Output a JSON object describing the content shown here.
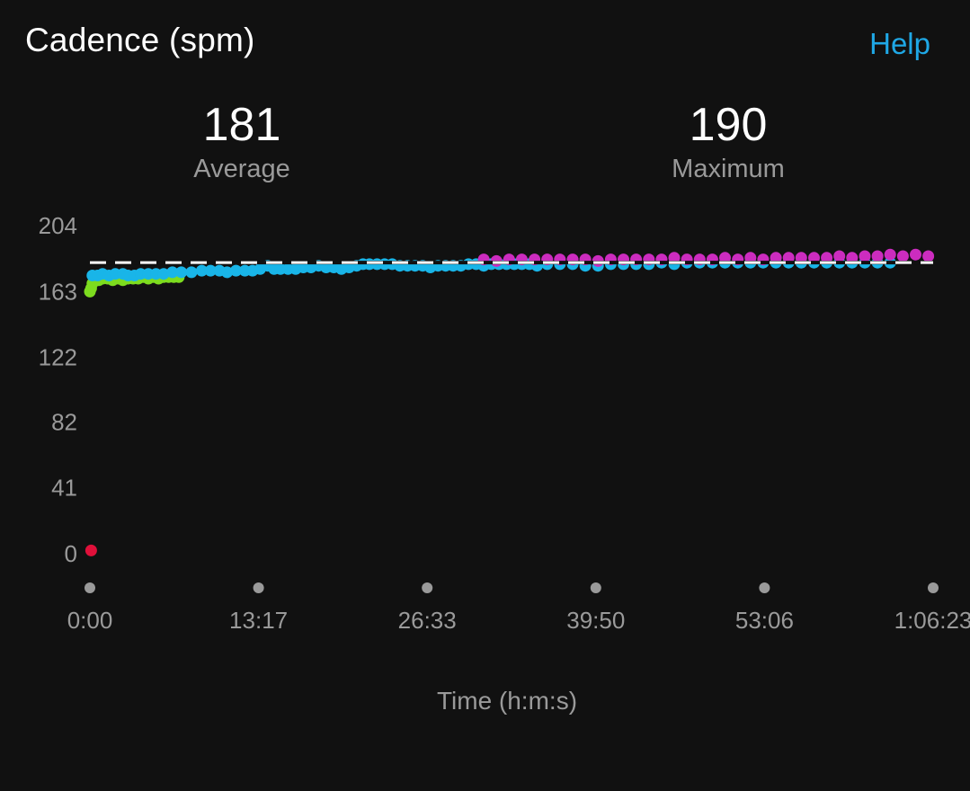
{
  "header": {
    "title": "Cadence (spm)",
    "help_label": "Help"
  },
  "stats": {
    "average": {
      "value": "181",
      "label": "Average"
    },
    "maximum": {
      "value": "190",
      "label": "Maximum"
    }
  },
  "colors": {
    "background": "#111111",
    "accent": "#1fa8e6",
    "zone_green": "#7ddc1f",
    "zone_blue": "#19b5e8",
    "zone_purple": "#cc2cbf",
    "zone_red": "#e0103a",
    "average_line": "#ffffff"
  },
  "chart_data": {
    "type": "scatter",
    "ylabel": "",
    "xlabel": "Time (h:m:s)",
    "y_ticks": [
      "204",
      "163",
      "122",
      "82",
      "41",
      "0"
    ],
    "y_tick_values": [
      204,
      163,
      122,
      82,
      41,
      0
    ],
    "x_ticks": [
      "0:00",
      "13:17",
      "26:33",
      "39:50",
      "53:06",
      "1:06:23"
    ],
    "ylim": [
      0,
      204
    ],
    "xlim_minutes": [
      0,
      66.38
    ],
    "average_line": 181,
    "average_line_style": "dashed",
    "grid": false,
    "series": [
      {
        "color": "#e0103a",
        "points": [
          [
            0.1,
            2
          ]
        ]
      },
      {
        "color": "#7ddc1f",
        "points": [
          [
            0.0,
            163
          ],
          [
            0.1,
            165
          ],
          [
            0.2,
            168
          ],
          [
            0.4,
            170
          ],
          [
            0.7,
            170
          ],
          [
            1.0,
            171
          ],
          [
            1.4,
            171
          ],
          [
            1.8,
            170
          ],
          [
            2.2,
            171
          ],
          [
            2.6,
            170
          ],
          [
            3.0,
            171
          ],
          [
            3.4,
            171
          ],
          [
            3.8,
            171
          ],
          [
            4.2,
            172
          ],
          [
            4.6,
            171
          ],
          [
            5.0,
            172
          ],
          [
            5.4,
            171
          ],
          [
            5.8,
            172
          ],
          [
            6.2,
            172
          ],
          [
            6.6,
            172
          ],
          [
            7.0,
            172
          ]
        ]
      },
      {
        "color": "#19b5e8",
        "points": [
          [
            0.2,
            173
          ],
          [
            0.6,
            173
          ],
          [
            1.0,
            174
          ],
          [
            1.5,
            173
          ],
          [
            2.0,
            174
          ],
          [
            2.6,
            174
          ],
          [
            3.0,
            173
          ],
          [
            3.5,
            173
          ],
          [
            4.0,
            174
          ],
          [
            4.6,
            174
          ],
          [
            5.2,
            174
          ],
          [
            5.8,
            174
          ],
          [
            6.5,
            175
          ],
          [
            7.2,
            175
          ],
          [
            8.0,
            175
          ],
          [
            8.8,
            176
          ],
          [
            9.5,
            176
          ],
          [
            10.2,
            176
          ],
          [
            10.8,
            175
          ],
          [
            11.5,
            176
          ],
          [
            12.2,
            176
          ],
          [
            12.8,
            176
          ],
          [
            13.4,
            177
          ],
          [
            14.0,
            179
          ],
          [
            14.5,
            177
          ],
          [
            15.0,
            177
          ],
          [
            15.6,
            177
          ],
          [
            16.2,
            177
          ],
          [
            16.8,
            178
          ],
          [
            17.4,
            178
          ],
          [
            18.0,
            179
          ],
          [
            18.6,
            178
          ],
          [
            19.2,
            178
          ],
          [
            19.8,
            177
          ],
          [
            20.4,
            178
          ],
          [
            21.0,
            179
          ],
          [
            21.5,
            180
          ],
          [
            22.0,
            180
          ],
          [
            22.6,
            180
          ],
          [
            23.2,
            180
          ],
          [
            23.8,
            180
          ],
          [
            24.4,
            179
          ],
          [
            25.0,
            179
          ],
          [
            25.6,
            179
          ],
          [
            26.2,
            179
          ],
          [
            26.8,
            178
          ],
          [
            27.4,
            179
          ],
          [
            28.0,
            179
          ],
          [
            28.6,
            179
          ],
          [
            29.2,
            179
          ],
          [
            29.8,
            180
          ],
          [
            30.4,
            180
          ],
          [
            31.0,
            179
          ],
          [
            31.6,
            180
          ],
          [
            32.2,
            180
          ],
          [
            32.8,
            180
          ],
          [
            33.4,
            180
          ],
          [
            34.0,
            180
          ],
          [
            34.6,
            180
          ],
          [
            35.2,
            179
          ],
          [
            36.0,
            180
          ],
          [
            37.0,
            180
          ],
          [
            38.0,
            180
          ],
          [
            39.0,
            179
          ],
          [
            40.0,
            179
          ],
          [
            41.0,
            180
          ],
          [
            42.0,
            180
          ],
          [
            43.0,
            180
          ],
          [
            44.0,
            180
          ],
          [
            45.0,
            181
          ],
          [
            46.0,
            180
          ],
          [
            47.0,
            181
          ],
          [
            48.0,
            181
          ],
          [
            49.0,
            181
          ],
          [
            50.0,
            181
          ],
          [
            51.0,
            181
          ],
          [
            52.0,
            181
          ],
          [
            53.0,
            181
          ],
          [
            54.0,
            181
          ],
          [
            55.0,
            181
          ],
          [
            56.0,
            181
          ],
          [
            57.0,
            181
          ],
          [
            58.0,
            181
          ],
          [
            59.0,
            181
          ],
          [
            60.0,
            181
          ],
          [
            61.0,
            181
          ],
          [
            62.0,
            181
          ],
          [
            63.0,
            181
          ]
        ]
      },
      {
        "color": "#cc2cbf",
        "points": [
          [
            31.0,
            183
          ],
          [
            32.0,
            182
          ],
          [
            33.0,
            183
          ],
          [
            34.0,
            183
          ],
          [
            35.0,
            183
          ],
          [
            36.0,
            183
          ],
          [
            37.0,
            183
          ],
          [
            38.0,
            183
          ],
          [
            39.0,
            183
          ],
          [
            40.0,
            182
          ],
          [
            41.0,
            183
          ],
          [
            42.0,
            183
          ],
          [
            43.0,
            183
          ],
          [
            44.0,
            183
          ],
          [
            45.0,
            183
          ],
          [
            46.0,
            184
          ],
          [
            47.0,
            183
          ],
          [
            48.0,
            183
          ],
          [
            49.0,
            183
          ],
          [
            50.0,
            184
          ],
          [
            51.0,
            183
          ],
          [
            52.0,
            184
          ],
          [
            53.0,
            183
          ],
          [
            54.0,
            184
          ],
          [
            55.0,
            184
          ],
          [
            56.0,
            184
          ],
          [
            57.0,
            184
          ],
          [
            58.0,
            184
          ],
          [
            59.0,
            185
          ],
          [
            60.0,
            184
          ],
          [
            61.0,
            185
          ],
          [
            62.0,
            185
          ],
          [
            63.0,
            186
          ],
          [
            64.0,
            185
          ],
          [
            65.0,
            186
          ],
          [
            66.0,
            185
          ]
        ]
      }
    ]
  }
}
